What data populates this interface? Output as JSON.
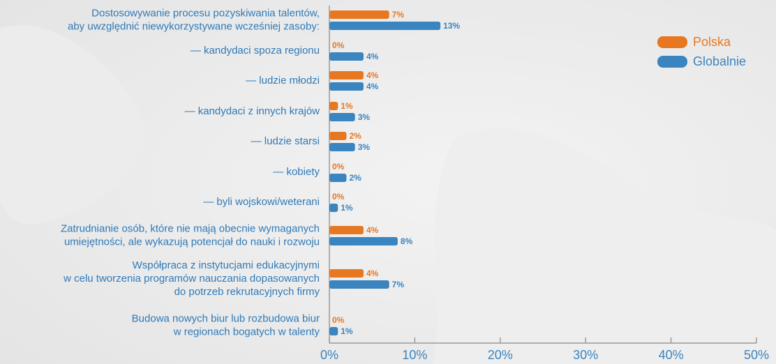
{
  "chart_data": {
    "type": "bar",
    "orientation": "horizontal",
    "categories": [
      [
        "Dostosowywanie procesu pozyskiwania talentów,",
        "aby uwzględnić niewykorzystywane wcześniej zasoby:"
      ],
      [
        "— kandydaci spoza regionu"
      ],
      [
        "— ludzie młodzi"
      ],
      [
        "— kandydaci z innych krajów"
      ],
      [
        "— ludzie starsi"
      ],
      [
        "— kobiety"
      ],
      [
        "— byli wojskowi/weterani"
      ],
      [
        "Zatrudnianie osób, które nie mają obecnie wymaganych",
        "umiejętności, ale wykazują potencjał do nauki i rozwoju"
      ],
      [
        "Współpraca z instytucjami edukacyjnymi",
        "w celu tworzenia programów nauczania dopasowanych",
        "do potrzeb rekrutacyjnych firmy"
      ],
      [
        "Budowa nowych biur lub rozbudowa biur",
        "w regionach bogatych w talenty"
      ]
    ],
    "series": [
      {
        "name": "Polska",
        "color": "#e87722",
        "values": [
          7,
          0,
          4,
          1,
          2,
          0,
          0,
          4,
          4,
          0
        ],
        "value_labels": [
          "7%",
          "0%",
          "4%",
          "1%",
          "2%",
          "0%",
          "0%",
          "4%",
          "4%",
          "0%"
        ]
      },
      {
        "name": "Globalnie",
        "color": "#3a84bf",
        "values": [
          13,
          4,
          4,
          3,
          3,
          2,
          1,
          8,
          7,
          1
        ],
        "value_labels": [
          "13%",
          "4%",
          "4%",
          "3%",
          "3%",
          "2%",
          "1%",
          "8%",
          "7%",
          "1%"
        ]
      }
    ],
    "xlim": [
      0,
      50
    ],
    "xticks": [
      {
        "value": 0,
        "label": "0%"
      },
      {
        "value": 10,
        "label": "10%"
      },
      {
        "value": 20,
        "label": "20%"
      },
      {
        "value": 30,
        "label": "30%"
      },
      {
        "value": 40,
        "label": "40%"
      },
      {
        "value": 50,
        "label": "50%"
      }
    ],
    "legend": "upper right"
  }
}
